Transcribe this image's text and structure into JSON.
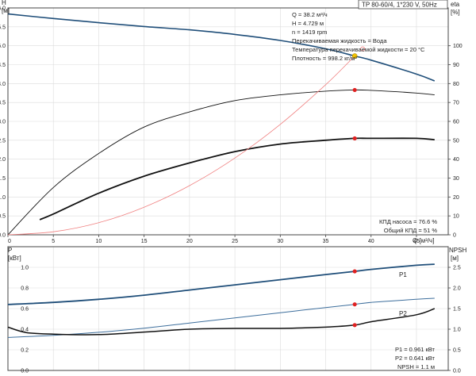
{
  "header": {
    "model": "TP 80-60/4, 1*230 V, 50Hz",
    "h_axis_name": "H",
    "h_axis_unit": "[м]",
    "eta_axis_name": "eta",
    "eta_axis_unit": "[%]",
    "q_axis_label": "Q [м³/ч]",
    "p_axis_name": "P",
    "p_axis_unit": "[кВт]",
    "npsh_axis_name": "NPSH",
    "npsh_axis_unit": "[м]"
  },
  "info_lines": [
    "Q = 38.2 м³/ч",
    "H = 4.729 м",
    "n = 1419 rpm",
    "Перекачиваемая жидкость = Вода",
    "Температура перекачиваемой жидкости = 20 °C",
    "Плотность = 998.2 кг/м³"
  ],
  "efficiency_lines": [
    "КПД насоса = 76.6 %",
    "Общий КПД = 51 %"
  ],
  "power_lines": [
    "P1 = 0.961 кВт",
    "P2 = 0.641 кВт",
    "NPSH = 1.1 м"
  ],
  "colors": {
    "head": "#1f4e79",
    "eta": "#111111",
    "system": "#f08080",
    "p1": "#1f4e79",
    "p2": "#3d6e9c",
    "npsh": "#111111",
    "point": "#e02020",
    "duty_point": "#f2c200"
  },
  "chart_data": [
    {
      "type": "line",
      "title": "",
      "xlabel": "Q [м³/ч]",
      "ylabel": "H [м]",
      "y2label": "eta [%]",
      "xlim": [
        0,
        48.5
      ],
      "ylim": [
        0,
        6.0
      ],
      "y2lim": [
        0,
        120
      ],
      "x_ticks": [
        0,
        5,
        10,
        15,
        20,
        25,
        30,
        35,
        40,
        45
      ],
      "y_ticks": [
        0.0,
        0.5,
        1.0,
        1.5,
        2.0,
        2.5,
        3.0,
        3.5,
        4.0,
        4.5,
        5.0,
        5.5,
        6.0
      ],
      "y2_ticks": [
        0,
        10,
        20,
        30,
        40,
        50,
        60,
        70,
        80,
        90,
        100
      ],
      "grid": true,
      "series": [
        {
          "key": "head",
          "axis": "left",
          "x": [
            0,
            5,
            10,
            15,
            20,
            25,
            30,
            35,
            38.2,
            40,
            45,
            47
          ],
          "y": [
            5.84,
            5.72,
            5.61,
            5.51,
            5.42,
            5.3,
            5.14,
            4.92,
            4.729,
            4.62,
            4.25,
            4.07
          ]
        },
        {
          "key": "eta_pump",
          "axis": "right",
          "x": [
            0,
            5,
            10,
            15,
            20,
            25,
            30,
            35,
            38.2,
            40,
            45,
            47
          ],
          "y": [
            0,
            25,
            43,
            57,
            65,
            71,
            74,
            76,
            76.6,
            76.4,
            75,
            74
          ]
        },
        {
          "key": "eta_total",
          "axis": "right",
          "x": [
            3.5,
            5,
            10,
            15,
            20,
            25,
            30,
            35,
            38.2,
            40,
            45,
            47
          ],
          "y": [
            8,
            11,
            22,
            31,
            38,
            44,
            48,
            50,
            51,
            51,
            51,
            50.3
          ]
        },
        {
          "key": "system",
          "axis": "left",
          "x": [
            0,
            5,
            10,
            15,
            20,
            25,
            30,
            35,
            38.2
          ],
          "y": [
            0,
            0.08,
            0.32,
            0.73,
            1.3,
            2.03,
            2.92,
            3.97,
            4.729
          ]
        }
      ],
      "points": [
        {
          "axis": "left",
          "x": 38.2,
          "y": 4.729,
          "role": "duty"
        },
        {
          "axis": "right",
          "x": 38.2,
          "y": 76.6,
          "role": "eta"
        },
        {
          "axis": "right",
          "x": 38.2,
          "y": 51,
          "role": "eta"
        }
      ]
    },
    {
      "type": "line",
      "title": "",
      "xlabel": "",
      "ylabel": "P [кВт]",
      "y2label": "NPSH [м]",
      "xlim": [
        0,
        48.5
      ],
      "ylim": [
        0,
        1.2
      ],
      "y2lim": [
        0,
        3.0
      ],
      "y_ticks": [
        0.0,
        0.2,
        0.4,
        0.6,
        0.8,
        1.0
      ],
      "y2_ticks": [
        0.0,
        0.5,
        1.0,
        1.5,
        2.0,
        2.5
      ],
      "grid": true,
      "series": [
        {
          "name": "P1",
          "key": "p1",
          "axis": "left",
          "x": [
            0,
            5,
            10,
            15,
            20,
            25,
            30,
            35,
            38.2,
            40,
            45,
            47
          ],
          "y": [
            0.64,
            0.66,
            0.69,
            0.73,
            0.78,
            0.83,
            0.88,
            0.93,
            0.961,
            0.98,
            1.02,
            1.03
          ]
        },
        {
          "name": "P2",
          "key": "p2",
          "axis": "left",
          "x": [
            0,
            5,
            10,
            15,
            20,
            25,
            30,
            35,
            38.2,
            40,
            45,
            47
          ],
          "y": [
            0.32,
            0.34,
            0.37,
            0.41,
            0.46,
            0.51,
            0.56,
            0.61,
            0.641,
            0.66,
            0.69,
            0.7
          ]
        },
        {
          "key": "npsh",
          "axis": "right",
          "x": [
            0,
            2,
            5,
            10,
            15,
            20,
            25,
            30,
            35,
            38.2,
            40,
            45,
            47
          ],
          "y": [
            1.05,
            0.92,
            0.88,
            0.87,
            0.93,
            1.0,
            1.02,
            1.02,
            1.05,
            1.1,
            1.18,
            1.35,
            1.5
          ]
        }
      ],
      "points": [
        {
          "axis": "left",
          "x": 38.2,
          "y": 0.961
        },
        {
          "axis": "left",
          "x": 38.2,
          "y": 0.641
        },
        {
          "axis": "right",
          "x": 38.2,
          "y": 1.1
        }
      ]
    }
  ]
}
